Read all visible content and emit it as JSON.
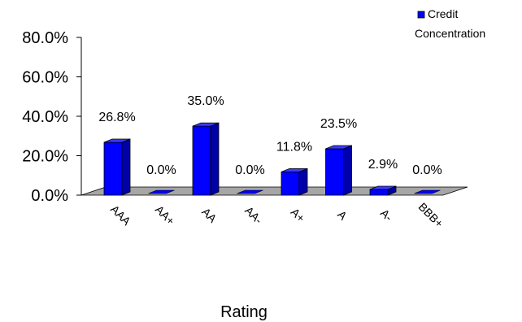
{
  "chart_data": {
    "type": "bar",
    "title": "",
    "xlabel": "Rating",
    "ylabel": "",
    "ylim": [
      0,
      80
    ],
    "yticks": [
      "0.0%",
      "20.0%",
      "40.0%",
      "60.0%",
      "80.0%"
    ],
    "categories": [
      "AAA",
      "AA+",
      "AA",
      "AA-",
      "A+",
      "A",
      "A-",
      "BBB+"
    ],
    "series": [
      {
        "name": "Credit Concentration",
        "values": [
          26.8,
          0.0,
          35.0,
          0.0,
          11.8,
          23.5,
          2.9,
          0.0
        ],
        "labels": [
          "26.8%",
          "0.0%",
          "35.0%",
          "0.0%",
          "11.8%",
          "23.5%",
          "2.9%",
          "0.0%"
        ]
      }
    ],
    "legend": {
      "position": "top-right",
      "lines": [
        "Credit",
        "Concentration"
      ]
    },
    "grid": false,
    "colors": {
      "bar_front": "#0000ff",
      "bar_side": "#0000a8",
      "bar_top": "#3a3aff",
      "floor": "#a6a6a6"
    }
  }
}
